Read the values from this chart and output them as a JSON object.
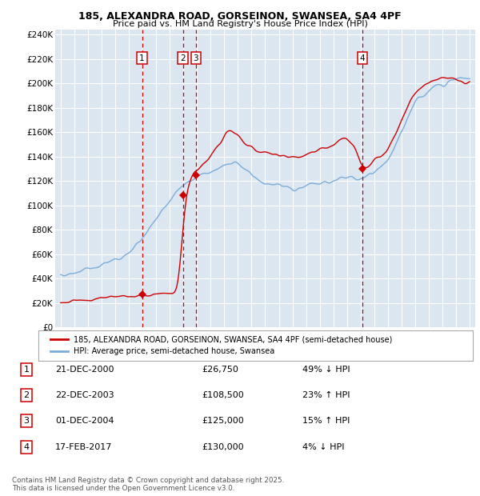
{
  "title1": "185, ALEXANDRA ROAD, GORSEINON, SWANSEA, SA4 4PF",
  "title2": "Price paid vs. HM Land Registry's House Price Index (HPI)",
  "ylabel_ticks": [
    "£0",
    "£20K",
    "£40K",
    "£60K",
    "£80K",
    "£100K",
    "£120K",
    "£140K",
    "£160K",
    "£180K",
    "£200K",
    "£220K",
    "£240K"
  ],
  "ytick_vals": [
    0,
    20000,
    40000,
    60000,
    80000,
    100000,
    120000,
    140000,
    160000,
    180000,
    200000,
    220000,
    240000
  ],
  "ylim": [
    0,
    244000
  ],
  "xlim_start": 1994.6,
  "xlim_end": 2025.4,
  "bg_color": "#dce6f1",
  "grid_color": "#ffffff",
  "red_line_color": "#cc0000",
  "blue_line_color": "#7aadda",
  "sale_points": [
    {
      "year": 2000.97,
      "price": 26750,
      "label": "1"
    },
    {
      "year": 2003.97,
      "price": 108500,
      "label": "2"
    },
    {
      "year": 2004.92,
      "price": 125000,
      "label": "3"
    },
    {
      "year": 2017.12,
      "price": 130000,
      "label": "4"
    }
  ],
  "vline_color": "#cc0000",
  "legend_entries": [
    "185, ALEXANDRA ROAD, GORSEINON, SWANSEA, SA4 4PF (semi-detached house)",
    "HPI: Average price, semi-detached house, Swansea"
  ],
  "table_data": [
    [
      "1",
      "21-DEC-2000",
      "£26,750",
      "49% ↓ HPI"
    ],
    [
      "2",
      "22-DEC-2003",
      "£108,500",
      "23% ↑ HPI"
    ],
    [
      "3",
      "01-DEC-2004",
      "£125,000",
      "15% ↑ HPI"
    ],
    [
      "4",
      "17-FEB-2017",
      "£130,000",
      "4% ↓ HPI"
    ]
  ],
  "footnote": "Contains HM Land Registry data © Crown copyright and database right 2025.\nThis data is licensed under the Open Government Licence v3.0."
}
